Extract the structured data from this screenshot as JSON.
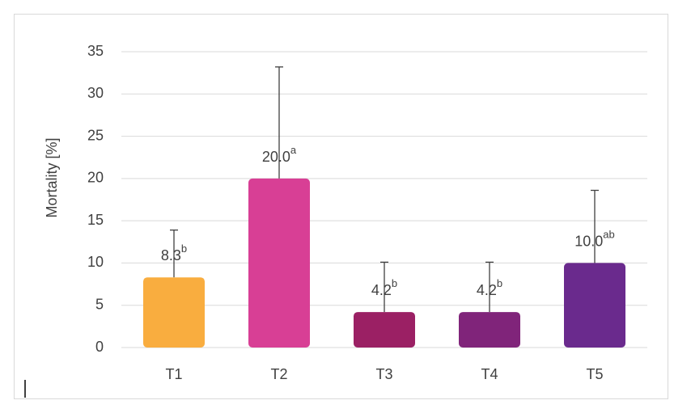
{
  "chart_data": {
    "type": "bar",
    "y_label": "Mortality [%]",
    "categories": [
      "T1",
      "T2",
      "T3",
      "T4",
      "T5"
    ],
    "values": [
      8.3,
      20.0,
      4.2,
      4.2,
      10.0
    ],
    "value_labels": [
      "8.3",
      "20.0",
      "4.2",
      "4.2",
      "10.0"
    ],
    "significance": [
      "b",
      "a",
      "b",
      "b",
      "ab"
    ],
    "errors": [
      5.6,
      13.2,
      5.9,
      5.9,
      8.6
    ],
    "colors": [
      "#f9ad3f",
      "#d83f95",
      "#9b2064",
      "#80247a",
      "#6a2a8d"
    ],
    "ylim": [
      0,
      35
    ],
    "yticks": [
      0,
      5,
      10,
      15,
      20,
      25,
      30,
      35
    ],
    "grid": true
  }
}
